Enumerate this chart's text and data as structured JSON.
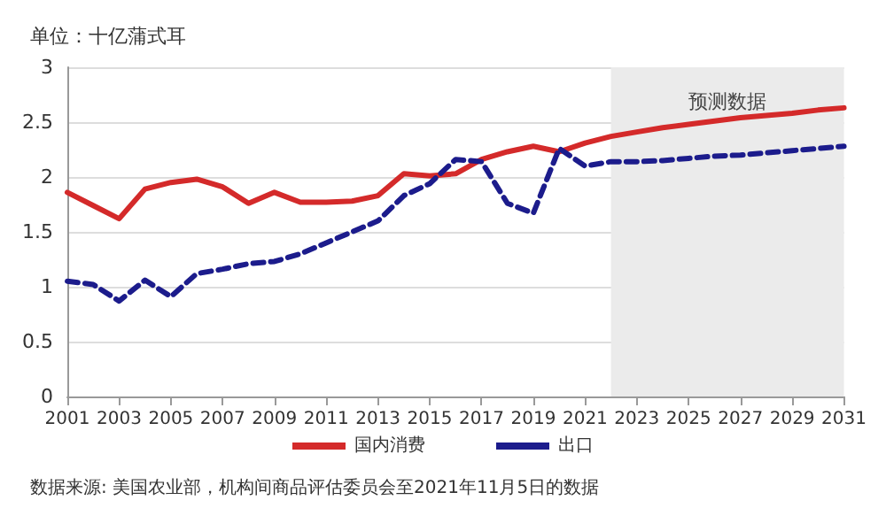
{
  "chart_data": {
    "type": "line",
    "ylabel": "单位：十亿蒲式耳",
    "x": [
      2001,
      2002,
      2003,
      2004,
      2005,
      2006,
      2007,
      2008,
      2009,
      2010,
      2011,
      2012,
      2013,
      2014,
      2015,
      2016,
      2017,
      2018,
      2019,
      2020,
      2021,
      2022,
      2023,
      2024,
      2025,
      2026,
      2027,
      2028,
      2029,
      2030,
      2031
    ],
    "series": [
      {
        "name": "国内消费",
        "color": "#d42a2a",
        "line_style": "solid",
        "values": [
          1.86,
          1.74,
          1.62,
          1.89,
          1.95,
          1.98,
          1.91,
          1.76,
          1.86,
          1.77,
          1.77,
          1.78,
          1.83,
          2.03,
          2.01,
          2.03,
          2.16,
          2.23,
          2.28,
          2.23,
          2.31,
          2.37,
          2.41,
          2.45,
          2.48,
          2.51,
          2.54,
          2.56,
          2.58,
          2.61,
          2.63
        ]
      },
      {
        "name": "出口",
        "color": "#1c1c8c",
        "line_style": "dashed",
        "values": [
          1.05,
          1.02,
          0.87,
          1.06,
          0.91,
          1.12,
          1.16,
          1.21,
          1.23,
          1.3,
          1.4,
          1.5,
          1.6,
          1.83,
          1.94,
          2.16,
          2.14,
          1.76,
          1.67,
          2.26,
          2.1,
          2.14,
          2.14,
          2.15,
          2.17,
          2.19,
          2.2,
          2.22,
          2.24,
          2.26,
          2.28
        ]
      }
    ],
    "xlim": [
      2001,
      2031
    ],
    "xticks": [
      2001,
      2003,
      2005,
      2007,
      2009,
      2011,
      2013,
      2015,
      2017,
      2019,
      2021,
      2023,
      2025,
      2027,
      2029,
      2031
    ],
    "ylim": [
      0,
      3
    ],
    "yticks": [
      0,
      0.5,
      1,
      1.5,
      2,
      2.5,
      3
    ],
    "bands": [
      {
        "axis": "x",
        "from": 2022,
        "to": 2031,
        "label": "预测数据",
        "color": "#ebebeb"
      }
    ],
    "grid": "y",
    "legend": "bottom",
    "marker": "none",
    "annotations": [
      "数据来源: 美国农业部，机构间商品评估委员会至2021年11月5日的数据"
    ]
  }
}
